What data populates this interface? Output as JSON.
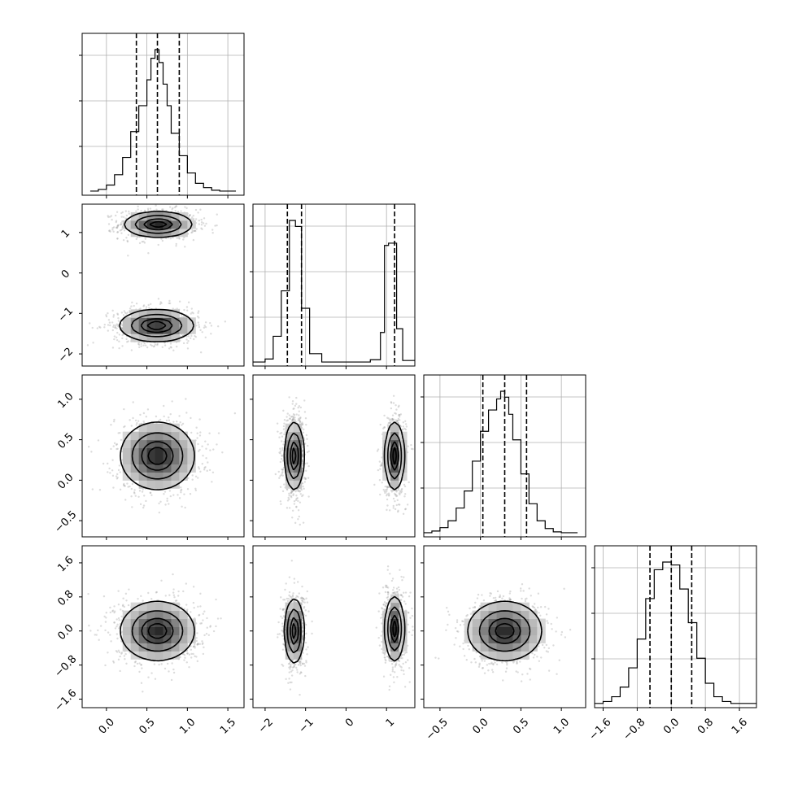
{
  "chart_data": {
    "type": "corner",
    "n_params": 4,
    "grid": true,
    "params": [
      {
        "range": [
          -0.3,
          1.7
        ],
        "ticks": [
          0.0,
          0.5,
          1.0,
          1.5
        ],
        "tick_labels": [
          "0.0",
          "0.5",
          "1.0",
          "1.5"
        ]
      },
      {
        "range": [
          -2.3,
          1.7
        ],
        "ticks": [
          -2,
          -1,
          0,
          1
        ],
        "tick_labels": [
          "−2",
          "−1",
          "0",
          "1"
        ]
      },
      {
        "range": [
          -0.7,
          1.3
        ],
        "ticks": [
          -0.5,
          0.0,
          0.5,
          1.0
        ],
        "tick_labels": [
          "−0.5",
          "0.0",
          "0.5",
          "1.0"
        ]
      },
      {
        "range": [
          -1.8,
          2.0
        ],
        "ticks": [
          -1.6,
          -0.8,
          0.0,
          0.8,
          1.6
        ],
        "tick_labels": [
          "−1.6",
          "−0.8",
          "0.0",
          "0.8",
          "1.6"
        ]
      }
    ],
    "diagonal_histograms": [
      {
        "param": 0,
        "bin_edges": [
          -0.2,
          -0.1,
          0.0,
          0.1,
          0.2,
          0.3,
          0.4,
          0.5,
          0.55,
          0.6,
          0.65,
          0.7,
          0.75,
          0.8,
          0.9,
          1.0,
          1.1,
          1.2,
          1.3,
          1.4,
          1.6
        ],
        "counts": [
          1,
          3,
          8,
          20,
          40,
          70,
          100,
          130,
          155,
          165,
          150,
          125,
          100,
          68,
          42,
          22,
          10,
          5,
          2,
          1
        ],
        "quantiles": [
          0.37,
          0.63,
          0.9
        ]
      },
      {
        "param": 1,
        "bin_edges": [
          -2.3,
          -2.0,
          -1.8,
          -1.6,
          -1.4,
          -1.25,
          -1.1,
          -0.9,
          -0.6,
          0.6,
          0.85,
          0.95,
          1.05,
          1.25,
          1.4,
          1.7
        ],
        "counts": [
          1,
          5,
          35,
          95,
          188,
          180,
          72,
          12,
          1,
          4,
          40,
          155,
          158,
          45,
          3
        ],
        "quantiles": [
          -1.45,
          -1.1,
          1.2
        ]
      },
      {
        "param": 2,
        "bin_edges": [
          -0.7,
          -0.6,
          -0.5,
          -0.4,
          -0.3,
          -0.2,
          -0.1,
          0.0,
          0.1,
          0.2,
          0.25,
          0.3,
          0.35,
          0.4,
          0.5,
          0.6,
          0.7,
          0.8,
          0.9,
          1.0,
          1.2
        ],
        "counts": [
          1,
          3,
          7,
          15,
          30,
          50,
          85,
          120,
          145,
          158,
          167,
          160,
          140,
          110,
          70,
          35,
          15,
          6,
          2,
          1
        ],
        "quantiles": [
          0.03,
          0.3,
          0.57
        ]
      },
      {
        "param": 3,
        "bin_edges": [
          -1.8,
          -1.6,
          -1.4,
          -1.2,
          -1.0,
          -0.8,
          -0.6,
          -0.4,
          -0.2,
          0.0,
          0.2,
          0.4,
          0.6,
          0.8,
          1.0,
          1.2,
          1.4,
          2.0
        ],
        "counts": [
          1,
          3,
          8,
          18,
          38,
          68,
          110,
          140,
          148,
          145,
          120,
          85,
          48,
          22,
          8,
          3,
          1
        ],
        "quantiles": [
          -0.5,
          0.0,
          0.48
        ]
      }
    ],
    "density_panels": [
      {
        "x": 0,
        "y": 1,
        "modes": [
          {
            "cx": 0.64,
            "cy": 1.2,
            "sx": 0.21,
            "sy": 0.16
          },
          {
            "cx": 0.62,
            "cy": -1.3,
            "sx": 0.23,
            "sy": 0.2
          }
        ]
      },
      {
        "x": 0,
        "y": 2,
        "modes": [
          {
            "cx": 0.63,
            "cy": 0.3,
            "sx": 0.23,
            "sy": 0.21
          }
        ]
      },
      {
        "x": 1,
        "y": 2,
        "modes": [
          {
            "cx": -1.28,
            "cy": 0.3,
            "sx": 0.12,
            "sy": 0.21
          },
          {
            "cx": 1.2,
            "cy": 0.3,
            "sx": 0.12,
            "sy": 0.21
          }
        ]
      },
      {
        "x": 0,
        "y": 3,
        "modes": [
          {
            "cx": 0.63,
            "cy": 0.0,
            "sx": 0.23,
            "sy": 0.35
          }
        ]
      },
      {
        "x": 1,
        "y": 3,
        "modes": [
          {
            "cx": -1.28,
            "cy": 0.0,
            "sx": 0.12,
            "sy": 0.38
          },
          {
            "cx": 1.2,
            "cy": 0.05,
            "sx": 0.12,
            "sy": 0.38
          }
        ]
      },
      {
        "x": 2,
        "y": 3,
        "modes": [
          {
            "cx": 0.3,
            "cy": 0.0,
            "sx": 0.23,
            "sy": 0.35
          }
        ]
      }
    ]
  }
}
